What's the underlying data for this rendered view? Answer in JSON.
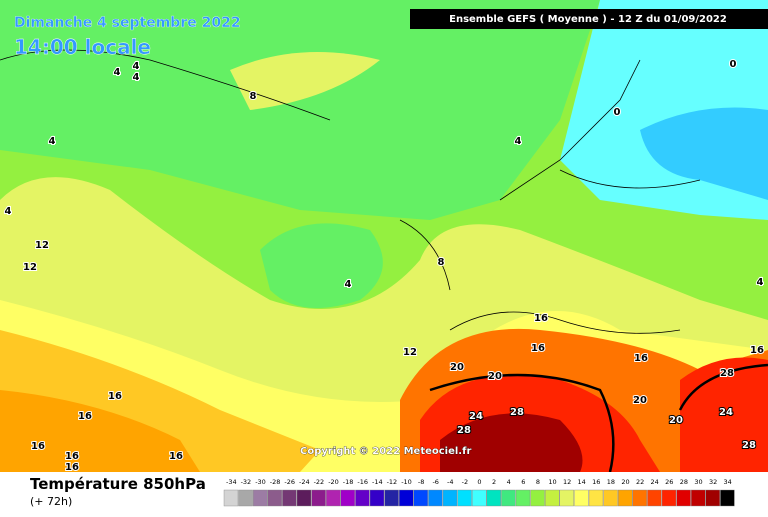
{
  "header": {
    "date": "Dimanche 4 septembre 2022",
    "time": "14:00 locale",
    "model": "Ensemble GEFS  ( Moyenne )  -  12 Z du 01/09/2022"
  },
  "copyright": "Copyright © 2022 Meteociel.fr",
  "footer": {
    "title": "Température 850hPa",
    "lead": "(+ 72h)"
  },
  "legend": {
    "values": [
      -34,
      -32,
      -30,
      -28,
      -26,
      -24,
      -22,
      -20,
      -18,
      -16,
      -14,
      -12,
      -10,
      -8,
      -6,
      -4,
      -2,
      0,
      2,
      4,
      6,
      8,
      10,
      12,
      14,
      16,
      18,
      20,
      22,
      24,
      26,
      28,
      30,
      32,
      34
    ],
    "colors": [
      "#d4d4d4",
      "#a8a8a8",
      "#9c7ca4",
      "#8c5c8c",
      "#743874",
      "#5c1c5c",
      "#8c1c8c",
      "#b024b0",
      "#a000c8",
      "#6400c8",
      "#3400c8",
      "#2424a4",
      "#0000d8",
      "#0048ff",
      "#0088ff",
      "#00b4ff",
      "#00e0ff",
      "#40ffff",
      "#00e4c0",
      "#40e880",
      "#64f064",
      "#94f040",
      "#c4f040",
      "#e4f464",
      "#ffff64",
      "#ffe444",
      "#ffc824",
      "#ffa400",
      "#ff7400",
      "#ff4400",
      "#ff2400",
      "#e00000",
      "#c00000",
      "#a00000",
      "#000000"
    ]
  },
  "map_labels": [
    "4",
    "4",
    "4",
    "8",
    "0",
    "0",
    "4",
    "4",
    "4",
    "12",
    "12",
    "4",
    "8",
    "4",
    "16",
    "12",
    "16",
    "16",
    "16",
    "20",
    "20",
    "28",
    "20",
    "24",
    "28",
    "24",
    "28",
    "20",
    "28",
    "16",
    "16",
    "16",
    "16",
    "16",
    "16"
  ]
}
